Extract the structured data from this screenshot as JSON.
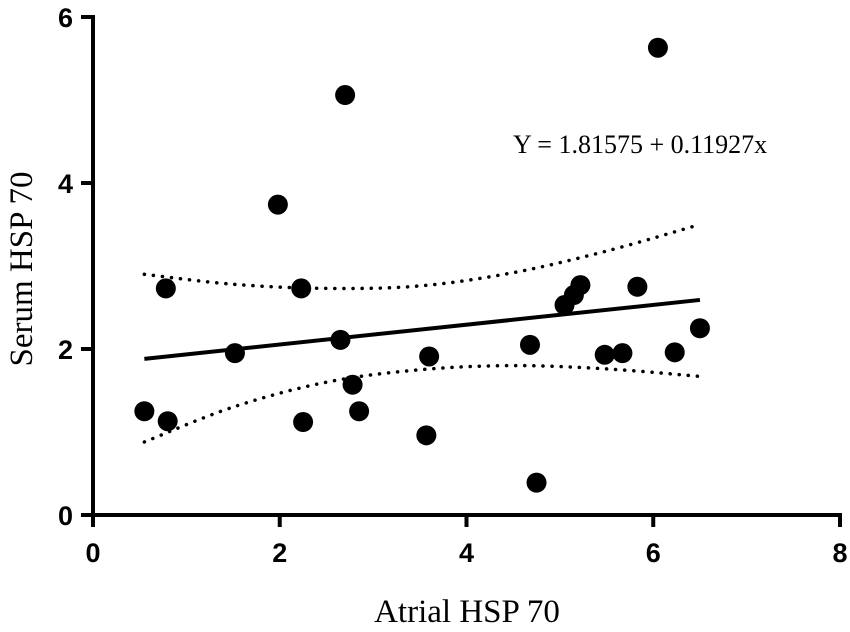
{
  "chart_data": {
    "type": "scatter",
    "xlabel": "Atrial HSP 70",
    "ylabel": "Serum HSP 70",
    "xlim": [
      0,
      8
    ],
    "ylim": [
      0,
      6
    ],
    "xticks": [
      0,
      2,
      4,
      6,
      8
    ],
    "yticks": [
      0,
      2,
      4,
      6
    ],
    "x_tick_labels": [
      "0",
      "2",
      "4",
      "6",
      "8"
    ],
    "y_tick_labels": [
      "0",
      "2",
      "4",
      "6"
    ],
    "grid": false,
    "legend": "none",
    "annotation": "Y = 1.81575 + 0.11927x",
    "points": [
      {
        "x": 0.55,
        "y": 1.25
      },
      {
        "x": 0.78,
        "y": 2.73
      },
      {
        "x": 0.8,
        "y": 1.13
      },
      {
        "x": 1.52,
        "y": 1.95
      },
      {
        "x": 1.98,
        "y": 3.74
      },
      {
        "x": 2.23,
        "y": 2.73
      },
      {
        "x": 2.25,
        "y": 1.12
      },
      {
        "x": 2.65,
        "y": 2.11
      },
      {
        "x": 2.7,
        "y": 5.06
      },
      {
        "x": 2.78,
        "y": 1.57
      },
      {
        "x": 2.85,
        "y": 1.25
      },
      {
        "x": 3.57,
        "y": 0.96
      },
      {
        "x": 3.6,
        "y": 1.91
      },
      {
        "x": 4.68,
        "y": 2.05
      },
      {
        "x": 4.75,
        "y": 0.39
      },
      {
        "x": 5.05,
        "y": 2.53
      },
      {
        "x": 5.15,
        "y": 2.65
      },
      {
        "x": 5.22,
        "y": 2.77
      },
      {
        "x": 5.48,
        "y": 1.93
      },
      {
        "x": 5.67,
        "y": 1.95
      },
      {
        "x": 5.83,
        "y": 2.75
      },
      {
        "x": 6.05,
        "y": 5.63
      },
      {
        "x": 6.23,
        "y": 1.96
      },
      {
        "x": 6.5,
        "y": 2.25
      }
    ],
    "regression": {
      "intercept": 1.81575,
      "slope": 0.11927,
      "x_range": [
        0.55,
        6.5
      ]
    },
    "confidence_band": {
      "upper": [
        [
          0.55,
          2.9
        ],
        [
          1.5,
          2.78
        ],
        [
          2.5,
          2.73
        ],
        [
          3.5,
          2.76
        ],
        [
          4.5,
          2.92
        ],
        [
          5.5,
          3.18
        ],
        [
          6.5,
          3.5
        ]
      ],
      "lower": [
        [
          0.55,
          0.88
        ],
        [
          1.5,
          1.3
        ],
        [
          2.5,
          1.6
        ],
        [
          3.5,
          1.75
        ],
        [
          4.5,
          1.8
        ],
        [
          5.5,
          1.76
        ],
        [
          6.5,
          1.67
        ]
      ]
    },
    "colors": {
      "points": "#000000",
      "line": "#000000"
    }
  }
}
